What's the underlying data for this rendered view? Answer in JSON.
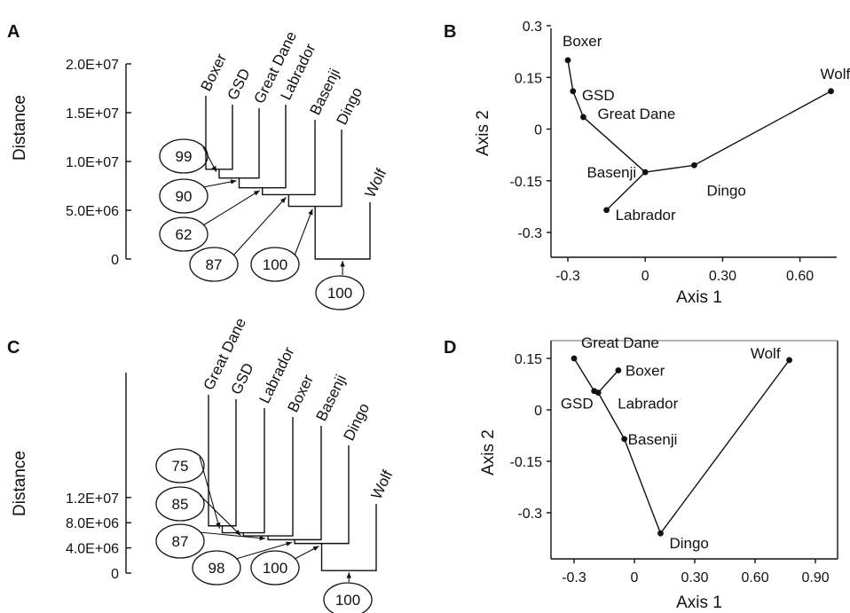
{
  "panels": [
    "A",
    "B",
    "C",
    "D"
  ],
  "chart_data": [
    {
      "panel": "A",
      "type": "dendrogram",
      "ylabel": "Distance",
      "yticks": [
        "2.0E+07",
        "1.5E+07",
        "1.0E+07",
        "5.0E+06",
        "0"
      ],
      "ytick_values": [
        20000000,
        15000000,
        10000000,
        5000000,
        0
      ],
      "leaves": [
        "Boxer",
        "GSD",
        "Great Dane",
        "Labrador",
        "Basenji",
        "Dingo",
        "Wolf"
      ],
      "merges": [
        {
          "clade": [
            "Boxer",
            "GSD"
          ],
          "height": 9200000,
          "bootstrap": 99
        },
        {
          "clade": [
            "Boxer",
            "GSD",
            "Great Dane"
          ],
          "height": 8300000,
          "bootstrap": 90
        },
        {
          "clade": [
            "Boxer",
            "GSD",
            "Great Dane",
            "Labrador"
          ],
          "height": 7300000,
          "bootstrap": 62
        },
        {
          "clade": [
            "Boxer",
            "GSD",
            "Great Dane",
            "Labrador",
            "Basenji"
          ],
          "height": 6600000,
          "bootstrap": 87
        },
        {
          "clade": [
            "Boxer",
            "GSD",
            "Great Dane",
            "Labrador",
            "Basenji",
            "Dingo"
          ],
          "height": 5400000,
          "bootstrap": 100
        },
        {
          "clade": [
            "Boxer",
            "GSD",
            "Great Dane",
            "Labrador",
            "Basenji",
            "Dingo",
            "Wolf"
          ],
          "height": 0,
          "bootstrap": 100
        }
      ]
    },
    {
      "panel": "B",
      "type": "scatter",
      "xlabel": "Axis 1",
      "ylabel": "Axis 2",
      "xticks": [
        "-0.3",
        "0",
        "0.30",
        "0.60"
      ],
      "xtick_values": [
        -0.3,
        0,
        0.3,
        0.6
      ],
      "yticks": [
        "0.3",
        "0.15",
        "0",
        "-0.15",
        "-0.3"
      ],
      "ytick_values": [
        0.3,
        0.15,
        0,
        -0.15,
        -0.3
      ],
      "points": [
        {
          "label": "Boxer",
          "x": -0.3,
          "y": 0.2
        },
        {
          "label": "GSD",
          "x": -0.28,
          "y": 0.11
        },
        {
          "label": "Great Dane",
          "x": -0.24,
          "y": 0.035
        },
        {
          "label": "Basenji",
          "x": 0.0,
          "y": -0.125
        },
        {
          "label": "Labrador",
          "x": -0.15,
          "y": -0.235
        },
        {
          "label": "Dingo",
          "x": 0.19,
          "y": -0.105
        },
        {
          "label": "Wolf",
          "x": 0.72,
          "y": 0.11
        }
      ],
      "edges": [
        [
          "Boxer",
          "GSD"
        ],
        [
          "GSD",
          "Great Dane"
        ],
        [
          "Great Dane",
          "Basenji"
        ],
        [
          "Basenji",
          "Labrador"
        ],
        [
          "Basenji",
          "Dingo"
        ],
        [
          "Dingo",
          "Wolf"
        ]
      ]
    },
    {
      "panel": "C",
      "type": "dendrogram",
      "ylabel": "Distance",
      "yticks": [
        "1.2E+07",
        "8.0E+06",
        "4.0E+06",
        "0"
      ],
      "ytick_values": [
        12000000,
        8000000,
        4000000,
        0
      ],
      "leaves": [
        "Great Dane",
        "GSD",
        "Labrador",
        "Boxer",
        "Basenji",
        "Dingo",
        "Wolf"
      ],
      "merges": [
        {
          "clade": [
            "Great Dane",
            "GSD"
          ],
          "height": 7500000,
          "bootstrap": 75
        },
        {
          "clade": [
            "Great Dane",
            "GSD",
            "Labrador"
          ],
          "height": 6400000,
          "bootstrap": 85
        },
        {
          "clade": [
            "Great Dane",
            "GSD",
            "Labrador",
            "Boxer"
          ],
          "height": 5900000,
          "bootstrap": 87
        },
        {
          "clade": [
            "Great Dane",
            "GSD",
            "Labrador",
            "Boxer",
            "Basenji"
          ],
          "height": 5300000,
          "bootstrap": 98
        },
        {
          "clade": [
            "Great Dane",
            "GSD",
            "Labrador",
            "Boxer",
            "Basenji",
            "Dingo"
          ],
          "height": 4700000,
          "bootstrap": 100
        },
        {
          "clade": [
            "Great Dane",
            "GSD",
            "Labrador",
            "Boxer",
            "Basenji",
            "Dingo",
            "Wolf"
          ],
          "height": 400000,
          "bootstrap": 100
        }
      ]
    },
    {
      "panel": "D",
      "type": "scatter",
      "xlabel": "Axis 1",
      "ylabel": "Axis 2",
      "xticks": [
        "-0.3",
        "0",
        "0.30",
        "0.60",
        "0.90"
      ],
      "xtick_values": [
        -0.3,
        0,
        0.3,
        0.6,
        0.9
      ],
      "yticks": [
        "0.15",
        "0",
        "-0.15",
        "-0.3"
      ],
      "ytick_values": [
        0.15,
        0,
        -0.15,
        -0.3
      ],
      "points": [
        {
          "label": "Great Dane",
          "x": -0.3,
          "y": 0.15
        },
        {
          "label": "Boxer",
          "x": -0.08,
          "y": 0.115
        },
        {
          "label": "GSD",
          "x": -0.2,
          "y": 0.055
        },
        {
          "label": "Labrador",
          "x": -0.18,
          "y": 0.05
        },
        {
          "label": "Basenji",
          "x": -0.05,
          "y": -0.085
        },
        {
          "label": "Dingo",
          "x": 0.13,
          "y": -0.36
        },
        {
          "label": "Wolf",
          "x": 0.77,
          "y": 0.145
        }
      ],
      "edges": [
        [
          "Great Dane",
          "GSD"
        ],
        [
          "Boxer",
          "Labrador"
        ],
        [
          "GSD",
          "Labrador"
        ],
        [
          "Labrador",
          "Basenji"
        ],
        [
          "Basenji",
          "Dingo"
        ],
        [
          "Dingo",
          "Wolf"
        ]
      ]
    }
  ]
}
